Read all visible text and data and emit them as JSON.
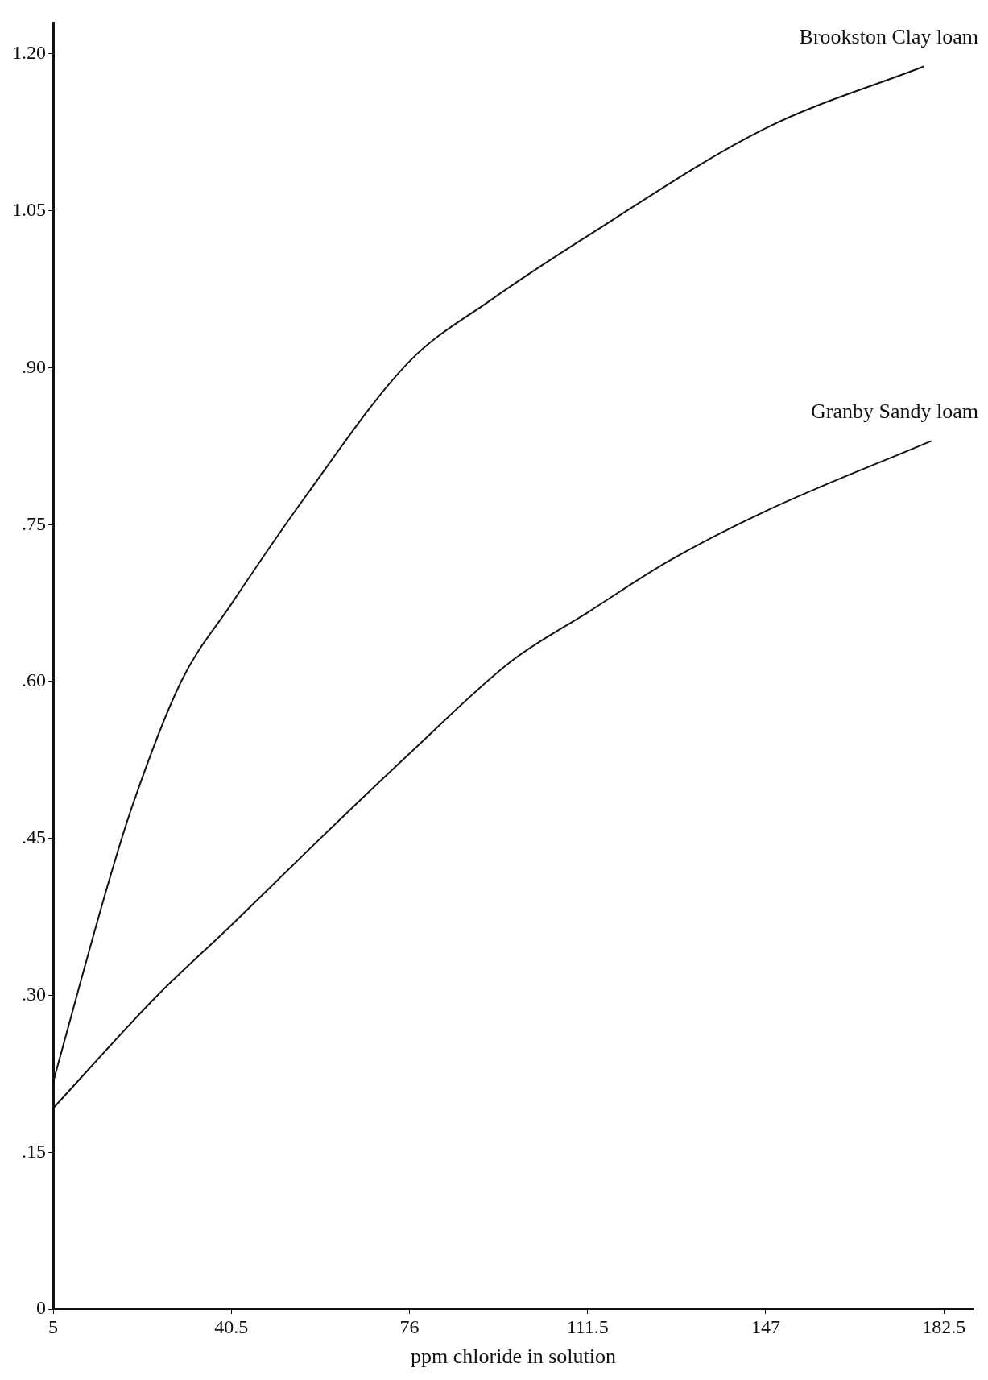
{
  "chart_data": {
    "type": "line",
    "xlabel": "ppm chloride in solution",
    "xlim": [
      5,
      188.4
    ],
    "xticks": [
      5,
      40.5,
      76,
      111.5,
      147,
      182.5
    ],
    "ylim": [
      0,
      1.23
    ],
    "yticks": [
      0,
      {
        "value": 0.15,
        "label": ".15"
      },
      {
        "value": 0.3,
        "label": ".30"
      },
      {
        "value": 0.45,
        "label": ".45"
      },
      {
        "value": 0.6,
        "label": ".60"
      },
      {
        "value": 0.75,
        "label": ".75"
      },
      {
        "value": 0.9,
        "label": ".90"
      },
      1.05,
      {
        "value": 1.2,
        "label": "1.20"
      }
    ],
    "legend": false,
    "marker": "none",
    "line_style": "solid",
    "series": [
      {
        "name": "Brookston Clay loam",
        "color": "#111111",
        "x": [
          5,
          15.8,
          20.7,
          30.5,
          40.5,
          55,
          76,
          92.3,
          111.5,
          147,
          178.5
        ],
        "values": [
          0.217,
          0.404,
          0.48,
          0.6,
          0.674,
          0.775,
          0.906,
          0.965,
          1.026,
          1.129,
          1.188
        ]
      },
      {
        "name": "Granby Sandy loam",
        "color": "#111111",
        "x": [
          5,
          25.6,
          40.5,
          57.6,
          76,
          96.2,
          111.5,
          127.6,
          147,
          180
        ],
        "values": [
          0.192,
          0.299,
          0.367,
          0.447,
          0.531,
          0.619,
          0.666,
          0.715,
          0.763,
          0.83
        ]
      }
    ]
  }
}
